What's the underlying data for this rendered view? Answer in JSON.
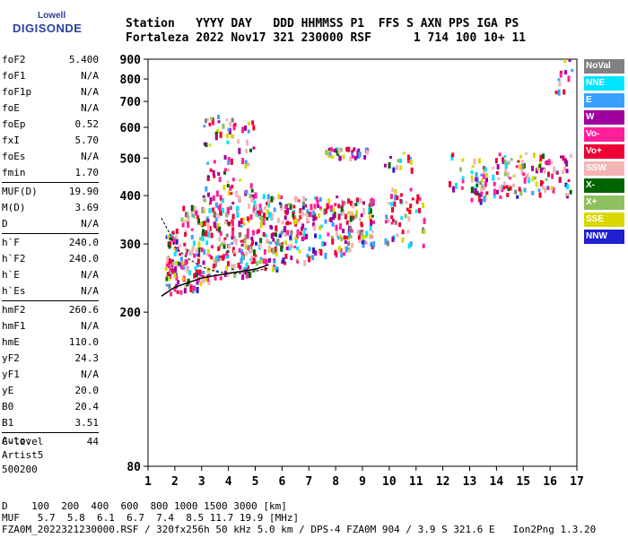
{
  "logo": {
    "line1": "Lowell",
    "line2": "DIGISONDE"
  },
  "header": {
    "line1": "Station   YYYY DAY   DDD HHMMSS P1  FFS S AXN PPS IGA PS",
    "line2": "Fortaleza 2022 Nov17 321 230000 RSF      1 714 100 10+ 11"
  },
  "params": [
    {
      "label": "foF2",
      "value": "5.400"
    },
    {
      "label": "foF1",
      "value": "N/A"
    },
    {
      "label": "foF1p",
      "value": "N/A"
    },
    {
      "label": "foE",
      "value": "N/A"
    },
    {
      "label": "foEp",
      "value": "0.52"
    },
    {
      "label": "fxI",
      "value": "5.70"
    },
    {
      "label": "foEs",
      "value": "N/A"
    },
    {
      "label": "fmin",
      "value": "1.70"
    },
    {
      "sep": true
    },
    {
      "label": "MUF(D)",
      "value": "19.90"
    },
    {
      "label": "M(D)",
      "value": "3.69"
    },
    {
      "label": "D",
      "value": "N/A"
    },
    {
      "sep": true
    },
    {
      "label": "h`F",
      "value": "240.0"
    },
    {
      "label": "h`F2",
      "value": "240.0"
    },
    {
      "label": "h`E",
      "value": "N/A"
    },
    {
      "label": "h`Es",
      "value": "N/A"
    },
    {
      "sep": true
    },
    {
      "label": "hmF2",
      "value": "260.6"
    },
    {
      "label": "hmF1",
      "value": "N/A"
    },
    {
      "label": "hmE",
      "value": "110.0"
    },
    {
      "label": "yF2",
      "value": "24.3"
    },
    {
      "label": "yF1",
      "value": "N/A"
    },
    {
      "label": "yE",
      "value": "20.0"
    },
    {
      "label": "B0",
      "value": "20.4"
    },
    {
      "label": "B1",
      "value": "3.51"
    },
    {
      "sep": true
    },
    {
      "label": "C-level",
      "value": "44"
    }
  ],
  "auto": {
    "line1": "Auto:",
    "line2": "Artist5",
    "line3": "500200"
  },
  "legend": [
    {
      "name": "NoVal",
      "color": "#808080"
    },
    {
      "name": "NNE",
      "color": "#00e5ff"
    },
    {
      "name": "E",
      "color": "#3aa0ff"
    },
    {
      "name": "W",
      "color": "#a000a0"
    },
    {
      "name": "Vo-",
      "color": "#ff1f9a"
    },
    {
      "name": "Vo+",
      "color": "#ee0033"
    },
    {
      "name": "SSW",
      "color": "#f4b4b4"
    },
    {
      "name": "X-",
      "color": "#006400"
    },
    {
      "name": "X+",
      "color": "#8ec060"
    },
    {
      "name": "SSE",
      "color": "#d8d800"
    },
    {
      "name": "NNW",
      "color": "#2020d0"
    }
  ],
  "footer": {
    "line1": "D    100  200  400  600  800 1000 1500 3000 [km]",
    "line2": "MUF   5.7  5.8  6.1  6.7  7.4  8.5 11.7 19.9 [MHz]",
    "line3": "FZA0M_2022321230000.RSF / 320fx256h 50 kHz 5.0 km / DPS-4 FZA0M 904 / 3.9 S 321.6 E   Ion2Png 1.3.20"
  },
  "chart_data": {
    "type": "scatter",
    "xlabel": "",
    "ylabel": "",
    "xlim": [
      1,
      17
    ],
    "ylim": [
      80,
      900
    ],
    "y_scale": "log",
    "x_ticks": [
      1,
      2,
      3,
      4,
      5,
      6,
      7,
      8,
      9,
      10,
      11,
      12,
      13,
      14,
      15,
      16,
      17
    ],
    "y_ticks": [
      80,
      200,
      300,
      400,
      500,
      600,
      700,
      800,
      900
    ],
    "grid": false,
    "legend_position": "right",
    "clusters": [
      {
        "x": [
          1.6,
          2.2
        ],
        "y": [
          225,
          330
        ],
        "n": 60
      },
      {
        "x": [
          2.2,
          3.0
        ],
        "y": [
          230,
          380
        ],
        "n": 90
      },
      {
        "x": [
          3.0,
          4.0
        ],
        "y": [
          240,
          420
        ],
        "n": 110
      },
      {
        "x": [
          4.0,
          5.0
        ],
        "y": [
          250,
          420
        ],
        "n": 110
      },
      {
        "x": [
          5.0,
          6.0
        ],
        "y": [
          260,
          410
        ],
        "n": 90
      },
      {
        "x": [
          6.0,
          7.0
        ],
        "y": [
          270,
          400
        ],
        "n": 80
      },
      {
        "x": [
          7.0,
          8.5
        ],
        "y": [
          280,
          400
        ],
        "n": 90
      },
      {
        "x": [
          8.5,
          9.4
        ],
        "y": [
          290,
          400
        ],
        "n": 60
      },
      {
        "x": [
          9.8,
          11.3
        ],
        "y": [
          300,
          420
        ],
        "n": 50
      },
      {
        "x": [
          3.0,
          5.0
        ],
        "y": [
          420,
          650
        ],
        "n": 70
      },
      {
        "x": [
          7.6,
          9.2
        ],
        "y": [
          505,
          535
        ],
        "n": 40
      },
      {
        "x": [
          9.8,
          10.8
        ],
        "y": [
          470,
          520
        ],
        "n": 15
      },
      {
        "x": [
          13.0,
          13.6
        ],
        "y": [
          390,
          500
        ],
        "n": 40
      },
      {
        "x": [
          13.8,
          16.8
        ],
        "y": [
          400,
          520
        ],
        "n": 110
      },
      {
        "x": [
          12.2,
          12.8
        ],
        "y": [
          420,
          520
        ],
        "n": 10
      },
      {
        "x": [
          16.1,
          16.9
        ],
        "y": [
          720,
          900
        ],
        "n": 12
      }
    ],
    "leading_edge": {
      "x": [
        1.5,
        2,
        3,
        4,
        5,
        5.5
      ],
      "y": [
        220,
        232,
        245,
        252,
        258,
        265
      ]
    },
    "x_trace": {
      "x": [
        1.5,
        1.8,
        2,
        2.5,
        3,
        3.5,
        4,
        4.5,
        5,
        5.5
      ],
      "y": [
        350,
        320,
        295,
        275,
        262,
        255,
        252,
        252,
        255,
        260
      ]
    }
  }
}
